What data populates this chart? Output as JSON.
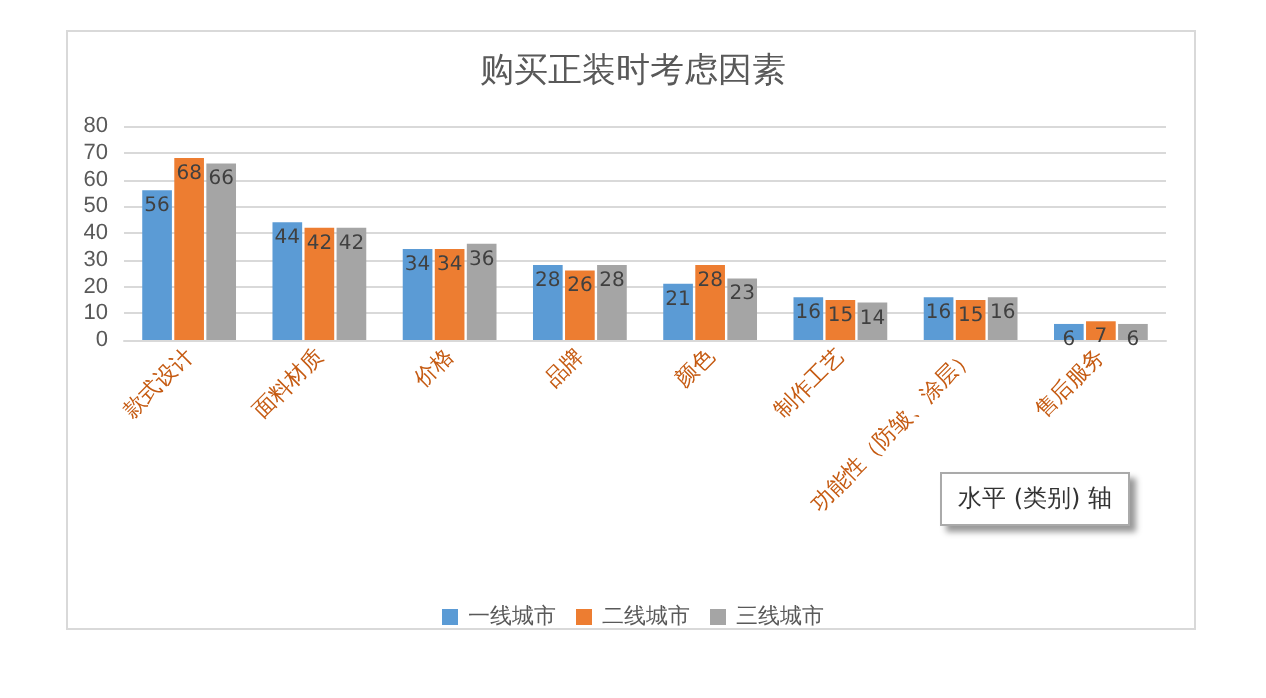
{
  "chart_data": {
    "type": "bar",
    "title": "购买正装时考虑因素",
    "categories": [
      "款式设计",
      "面料材质",
      "价格",
      "品牌",
      "颜色",
      "制作工艺",
      "功能性（防皱、涂层）",
      "售后服务"
    ],
    "series": [
      {
        "name": "一线城市",
        "color": "#5b9bd5",
        "values": [
          56,
          44,
          34,
          28,
          21,
          16,
          16,
          6
        ]
      },
      {
        "name": "二线城市",
        "color": "#ed7d31",
        "values": [
          68,
          42,
          34,
          26,
          28,
          15,
          15,
          7
        ]
      },
      {
        "name": "三线城市",
        "color": "#a5a5a5",
        "values": [
          66,
          42,
          36,
          28,
          23,
          14,
          16,
          6
        ]
      }
    ],
    "ylim": [
      0,
      80
    ],
    "yticks": [
      0,
      10,
      20,
      30,
      40,
      50,
      60,
      70,
      80
    ],
    "grid": "y",
    "legend": "bottom",
    "data_labels": true,
    "annotations": [
      "水平 (类别) 轴"
    ]
  }
}
